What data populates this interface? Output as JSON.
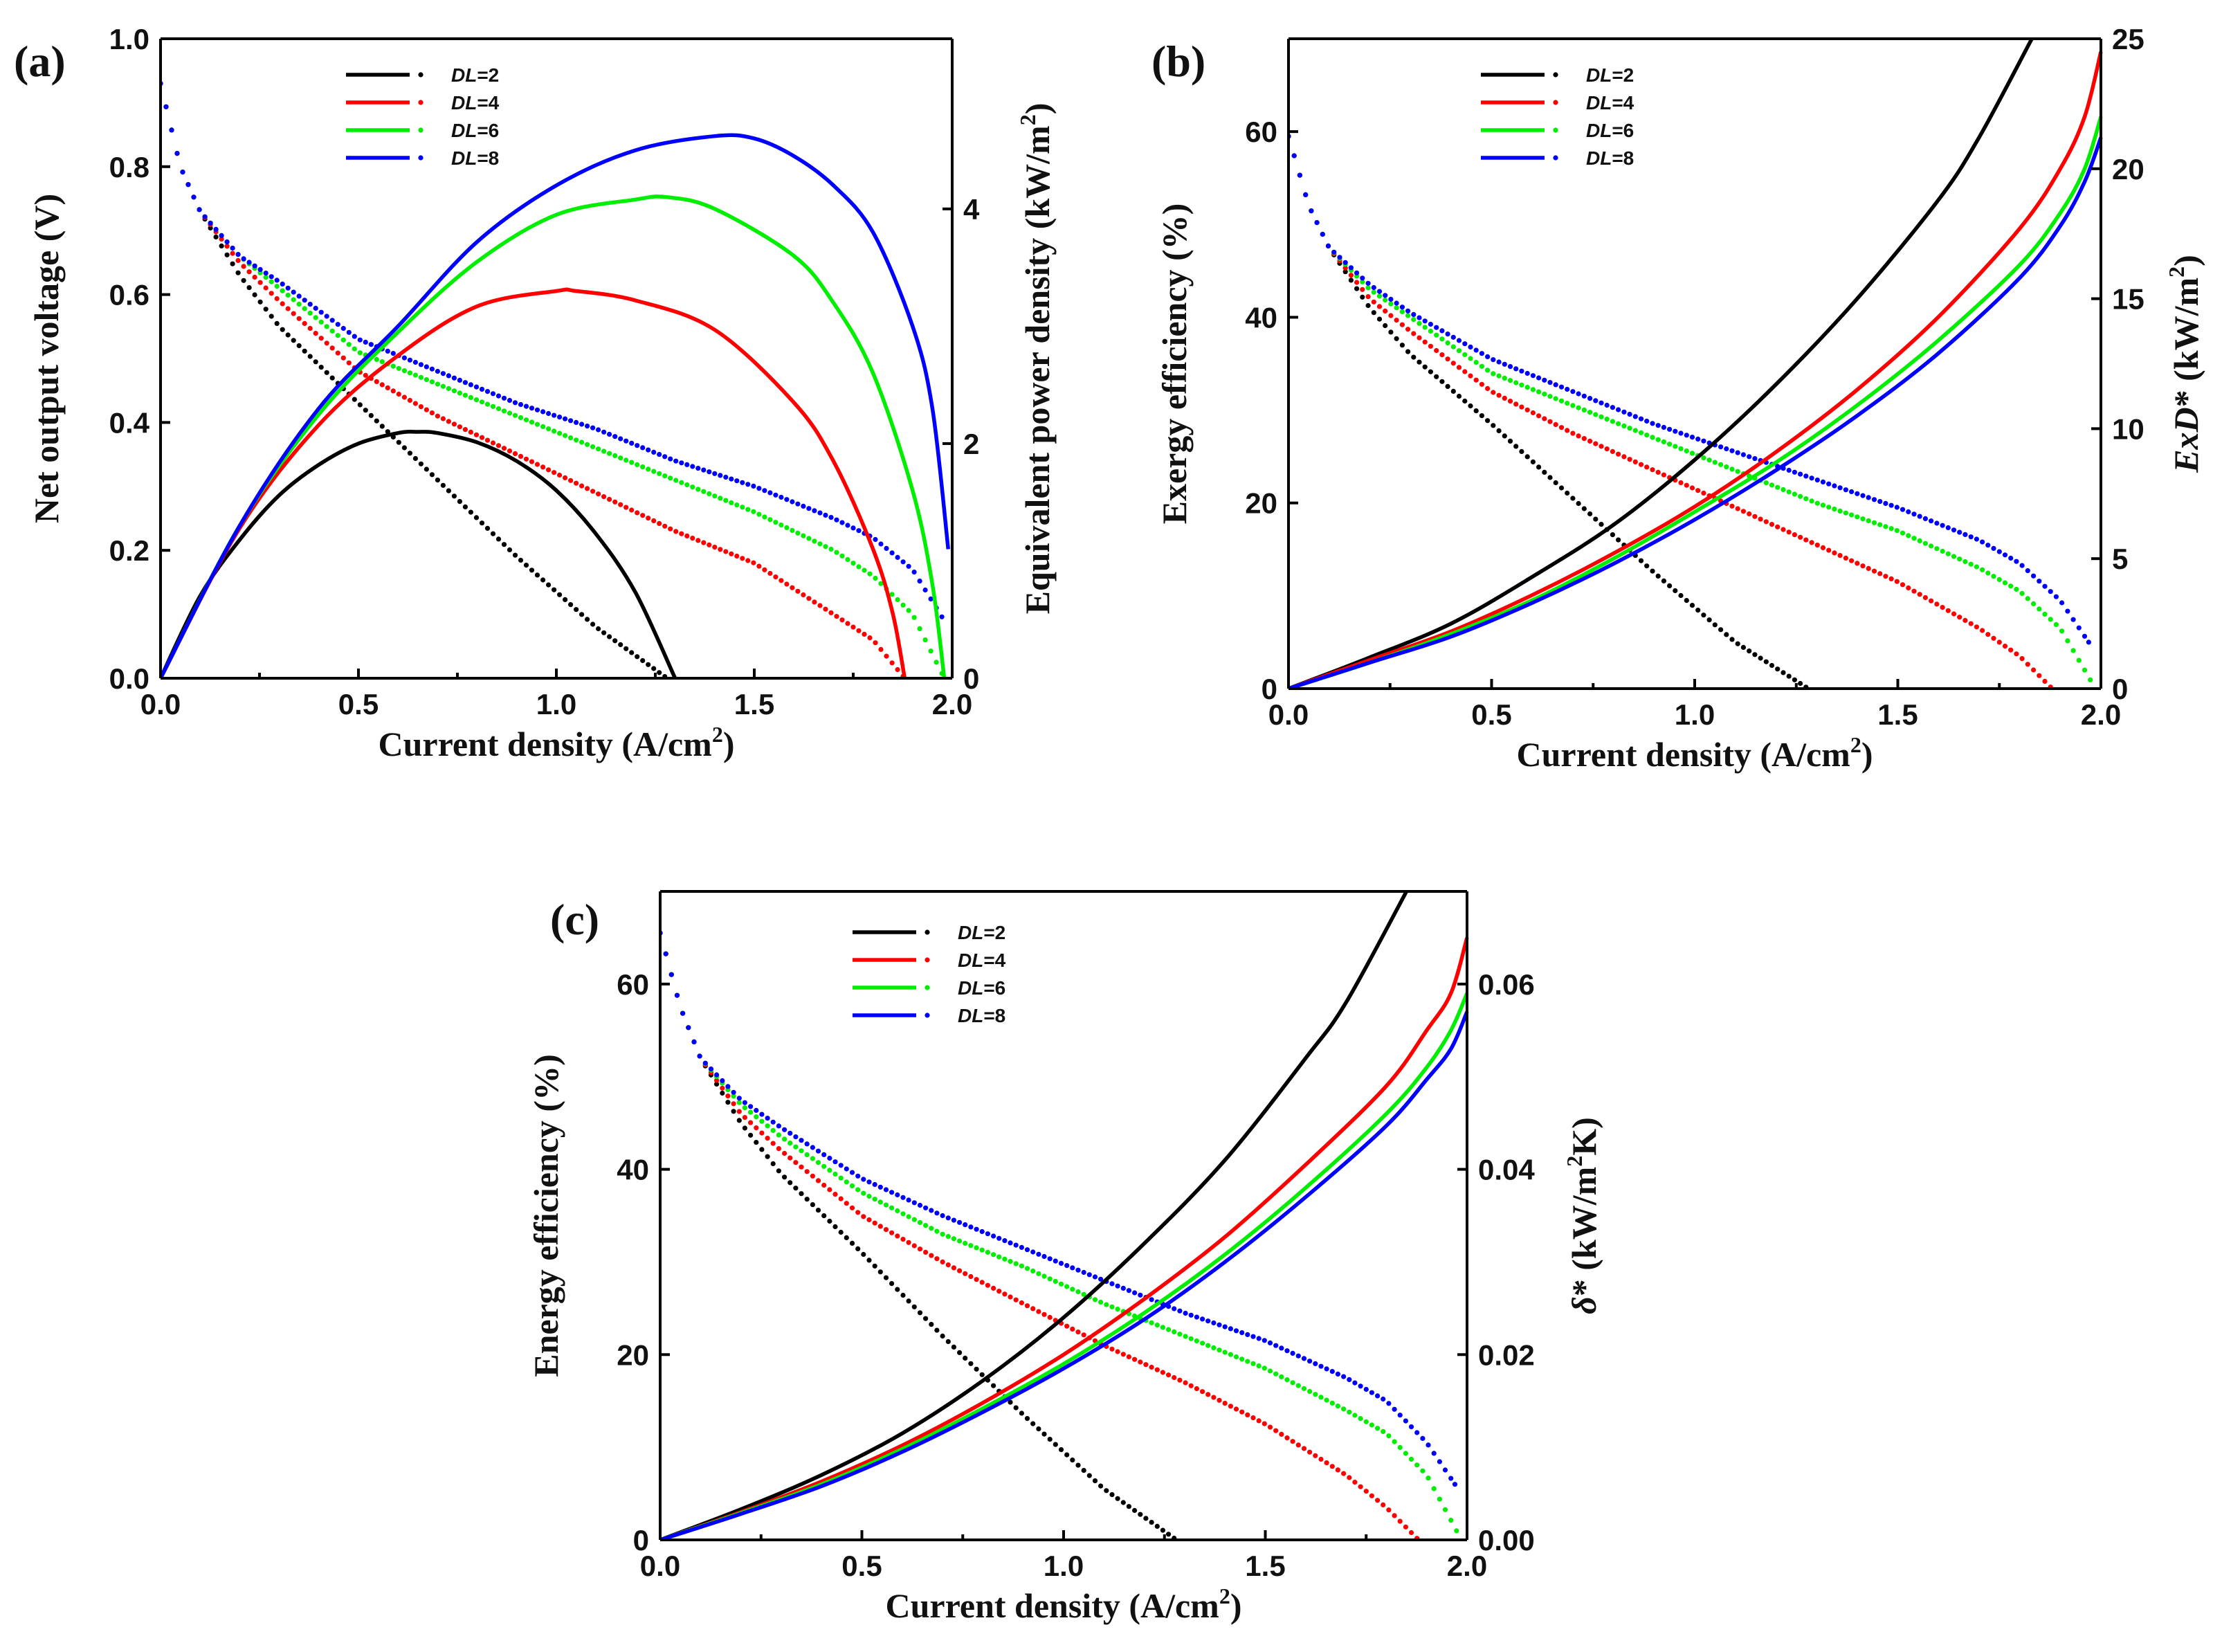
{
  "colors": {
    "DL=2": "#000000",
    "DL=4": "#ff0000",
    "DL=6": "#00ee00",
    "DL=8": "#0000ff"
  },
  "chart_data": [
    {
      "panel": "(a)",
      "type": "line",
      "xlabel": "Current density (A/cm",
      "xlabel_sup": "2",
      "xlabel_end": ")",
      "xlim": [
        0,
        2
      ],
      "xticks": [
        "0.0",
        "0.5",
        "1.0",
        "1.5",
        "2.0"
      ],
      "left_axis": {
        "label": "Net output voltage (V)",
        "ylim": [
          0,
          1.0
        ],
        "ticks": [
          "0.0",
          "0.2",
          "0.4",
          "0.6",
          "0.8",
          "1.0"
        ]
      },
      "right_axis": {
        "label": "Equivalent power density (kW/m",
        "label_sup": "2",
        "label_end": ")",
        "ylim": [
          0,
          5.45
        ],
        "ticks": [
          "0",
          "2",
          "4"
        ]
      },
      "legend": [
        {
          "prefix": "DL",
          "suffix": "=2"
        },
        {
          "prefix": "DL",
          "suffix": "=4"
        },
        {
          "prefix": "DL",
          "suffix": "=6"
        },
        {
          "prefix": "DL",
          "suffix": "=8"
        }
      ],
      "series": [
        {
          "name": "DL=2",
          "style": "dotted",
          "axis": "left",
          "x": [
            0,
            0.05,
            0.1,
            0.2,
            0.3,
            0.5,
            0.7,
            0.9,
            1.1,
            1.28
          ],
          "y": [
            0.93,
            0.8,
            0.73,
            0.63,
            0.55,
            0.43,
            0.31,
            0.19,
            0.08,
            0.0
          ]
        },
        {
          "name": "DL=4",
          "style": "dotted",
          "axis": "left",
          "x": [
            0,
            0.05,
            0.1,
            0.2,
            0.3,
            0.5,
            0.7,
            0.9,
            1.1,
            1.3,
            1.5,
            1.7,
            1.8,
            1.88
          ],
          "y": [
            0.93,
            0.8,
            0.73,
            0.65,
            0.59,
            0.48,
            0.41,
            0.35,
            0.29,
            0.23,
            0.18,
            0.1,
            0.06,
            0.0
          ]
        },
        {
          "name": "DL=6",
          "style": "dotted",
          "axis": "left",
          "x": [
            0,
            0.05,
            0.1,
            0.2,
            0.3,
            0.5,
            0.7,
            0.9,
            1.1,
            1.3,
            1.5,
            1.7,
            1.8,
            1.9,
            1.98
          ],
          "y": [
            0.93,
            0.8,
            0.73,
            0.66,
            0.61,
            0.51,
            0.46,
            0.41,
            0.36,
            0.31,
            0.26,
            0.2,
            0.16,
            0.1,
            0.0
          ]
        },
        {
          "name": "DL=8",
          "style": "dotted",
          "axis": "left",
          "x": [
            0,
            0.05,
            0.1,
            0.2,
            0.3,
            0.5,
            0.7,
            0.9,
            1.1,
            1.3,
            1.5,
            1.7,
            1.8,
            1.9,
            1.98
          ],
          "y": [
            0.93,
            0.8,
            0.73,
            0.66,
            0.62,
            0.53,
            0.48,
            0.43,
            0.39,
            0.34,
            0.3,
            0.25,
            0.22,
            0.17,
            0.09
          ]
        },
        {
          "name": "DL=2",
          "style": "solid",
          "axis": "right",
          "x": [
            0,
            0.1,
            0.2,
            0.3,
            0.4,
            0.5,
            0.6,
            0.65,
            0.7,
            0.8,
            0.9,
            1.0,
            1.1,
            1.2,
            1.3
          ],
          "y": [
            0,
            0.7,
            1.18,
            1.56,
            1.82,
            2.0,
            2.09,
            2.1,
            2.09,
            2.01,
            1.85,
            1.6,
            1.23,
            0.73,
            0.0
          ]
        },
        {
          "name": "DL=4",
          "style": "solid",
          "axis": "right",
          "x": [
            0,
            0.2,
            0.4,
            0.6,
            0.8,
            1.0,
            1.05,
            1.2,
            1.4,
            1.6,
            1.7,
            1.8,
            1.85,
            1.88
          ],
          "y": [
            0,
            1.28,
            2.16,
            2.75,
            3.17,
            3.3,
            3.3,
            3.22,
            2.97,
            2.35,
            1.85,
            1.1,
            0.55,
            0.0
          ]
        },
        {
          "name": "DL=6",
          "style": "solid",
          "axis": "right",
          "x": [
            0,
            0.2,
            0.4,
            0.6,
            0.8,
            1.0,
            1.2,
            1.28,
            1.4,
            1.6,
            1.7,
            1.8,
            1.9,
            1.95,
            1.98
          ],
          "y": [
            0,
            1.3,
            2.25,
            2.95,
            3.55,
            3.95,
            4.08,
            4.1,
            4.0,
            3.6,
            3.2,
            2.6,
            1.6,
            0.8,
            0.0
          ]
        },
        {
          "name": "DL=8",
          "style": "solid",
          "axis": "right",
          "x": [
            0,
            0.2,
            0.4,
            0.6,
            0.8,
            1.0,
            1.2,
            1.4,
            1.5,
            1.6,
            1.7,
            1.8,
            1.9,
            1.95,
            1.99
          ],
          "y": [
            0,
            1.3,
            2.3,
            3.0,
            3.72,
            4.2,
            4.5,
            4.62,
            4.6,
            4.45,
            4.2,
            3.8,
            3.0,
            2.3,
            1.1
          ]
        }
      ]
    },
    {
      "panel": "(b)",
      "type": "line",
      "xlabel": "Current density (A/cm",
      "xlabel_sup": "2",
      "xlabel_end": ")",
      "xlim": [
        0,
        2
      ],
      "xticks": [
        "0.0",
        "0.5",
        "1.0",
        "1.5",
        "2.0"
      ],
      "left_axis": {
        "label": "Exergy efficiency (%)",
        "ylim": [
          0,
          70
        ],
        "ticks": [
          "0",
          "20",
          "40",
          "60"
        ]
      },
      "right_axis": {
        "label_pre": "Ex",
        "label_ital": "D",
        "label_post": "* (kW/m",
        "label_sup": "2",
        "label_end": ")",
        "ylim": [
          0,
          25
        ],
        "ticks": [
          "0",
          "5",
          "10",
          "15",
          "20",
          "25"
        ]
      },
      "legend": [
        {
          "prefix": "DL",
          "suffix": "=2"
        },
        {
          "prefix": "DL",
          "suffix": "=4"
        },
        {
          "prefix": "DL",
          "suffix": "=6"
        },
        {
          "prefix": "DL",
          "suffix": "=8"
        }
      ],
      "series": [
        {
          "name": "DL=2",
          "style": "dotted",
          "axis": "left",
          "x": [
            0,
            0.05,
            0.1,
            0.2,
            0.3,
            0.5,
            0.7,
            0.9,
            1.1,
            1.28
          ],
          "y": [
            59.5,
            52,
            47.5,
            41,
            36,
            28.5,
            20.5,
            12.5,
            5,
            0
          ]
        },
        {
          "name": "DL=4",
          "style": "dotted",
          "axis": "left",
          "x": [
            0,
            0.05,
            0.1,
            0.2,
            0.3,
            0.5,
            0.7,
            0.9,
            1.1,
            1.3,
            1.5,
            1.7,
            1.8,
            1.88
          ],
          "y": [
            59.5,
            52,
            47.5,
            42,
            38.5,
            32,
            27.5,
            23.5,
            19.5,
            15.5,
            11.5,
            6.5,
            3.5,
            0
          ]
        },
        {
          "name": "DL=6",
          "style": "dotted",
          "axis": "left",
          "x": [
            0,
            0.05,
            0.1,
            0.2,
            0.3,
            0.5,
            0.7,
            0.9,
            1.1,
            1.3,
            1.5,
            1.7,
            1.8,
            1.9,
            1.98
          ],
          "y": [
            59.5,
            52,
            47.5,
            43,
            40,
            34,
            30.5,
            27,
            23.5,
            20,
            17,
            13,
            10.5,
            6.5,
            0.5
          ]
        },
        {
          "name": "DL=8",
          "style": "dotted",
          "axis": "left",
          "x": [
            0,
            0.05,
            0.1,
            0.2,
            0.3,
            0.5,
            0.7,
            0.9,
            1.1,
            1.3,
            1.5,
            1.7,
            1.8,
            1.9,
            1.97
          ],
          "y": [
            59.5,
            52,
            47.5,
            43.5,
            40.5,
            35.5,
            32,
            28.5,
            25.5,
            22.5,
            19.5,
            16,
            13.5,
            9.5,
            5
          ]
        },
        {
          "name": "DL=2",
          "style": "solid",
          "axis": "right",
          "x": [
            0,
            0.2,
            0.4,
            0.6,
            0.8,
            1.0,
            1.2,
            1.4,
            1.6,
            1.7,
            1.83
          ],
          "y": [
            0,
            1.2,
            2.5,
            4.3,
            6.3,
            8.8,
            11.7,
            15,
            18.8,
            21.2,
            25
          ]
        },
        {
          "name": "DL=4",
          "style": "solid",
          "axis": "right",
          "x": [
            0,
            0.2,
            0.4,
            0.6,
            0.8,
            1.0,
            1.2,
            1.4,
            1.6,
            1.8,
            1.9,
            1.96,
            2.0
          ],
          "y": [
            0,
            1.1,
            2.2,
            3.6,
            5.2,
            7,
            9.1,
            11.5,
            14.3,
            17.7,
            20,
            22,
            24.5
          ]
        },
        {
          "name": "DL=6",
          "style": "solid",
          "axis": "right",
          "x": [
            0,
            0.2,
            0.4,
            0.6,
            0.8,
            1.0,
            1.2,
            1.4,
            1.6,
            1.8,
            1.9,
            1.96,
            2.0
          ],
          "y": [
            0,
            1.0,
            2.1,
            3.4,
            5.0,
            6.8,
            8.7,
            10.9,
            13.4,
            16.3,
            18.3,
            20,
            22
          ]
        },
        {
          "name": "DL=8",
          "style": "solid",
          "axis": "right",
          "x": [
            0,
            0.2,
            0.4,
            0.6,
            0.8,
            1.0,
            1.2,
            1.4,
            1.6,
            1.8,
            1.9,
            1.96,
            2.0
          ],
          "y": [
            0,
            1.0,
            2.0,
            3.3,
            4.8,
            6.5,
            8.4,
            10.5,
            12.9,
            15.8,
            17.8,
            19.5,
            21.2
          ]
        }
      ]
    },
    {
      "panel": "(c)",
      "type": "line",
      "xlabel": "Current density (A/cm",
      "xlabel_sup": "2",
      "xlabel_end": ")",
      "xlim": [
        0,
        2
      ],
      "xticks": [
        "0.0",
        "0.5",
        "1.0",
        "1.5",
        "2.0"
      ],
      "left_axis": {
        "label": "Energy efficiency (%)",
        "ylim": [
          0,
          70
        ],
        "ticks": [
          "0",
          "20",
          "40",
          "60"
        ]
      },
      "right_axis": {
        "label_ital": "δ",
        "label_post": "* (kW/m",
        "label_sup": "2",
        "label_end": "K)",
        "ylim": [
          0,
          0.07
        ],
        "ticks": [
          "0.00",
          "0.02",
          "0.04",
          "0.06"
        ]
      },
      "legend": [
        {
          "prefix": "DL",
          "suffix": "=2"
        },
        {
          "prefix": "DL",
          "suffix": "=4"
        },
        {
          "prefix": "DL",
          "suffix": "=6"
        },
        {
          "prefix": "DL",
          "suffix": "=8"
        }
      ],
      "series": [
        {
          "name": "DL=2",
          "style": "dotted",
          "axis": "left",
          "x": [
            0,
            0.05,
            0.1,
            0.2,
            0.3,
            0.5,
            0.7,
            0.9,
            1.1,
            1.28
          ],
          "y": [
            65.5,
            57.5,
            52,
            45,
            39.5,
            31,
            22,
            13.5,
            5.5,
            0
          ]
        },
        {
          "name": "DL=4",
          "style": "dotted",
          "axis": "left",
          "x": [
            0,
            0.05,
            0.1,
            0.2,
            0.3,
            0.5,
            0.7,
            0.9,
            1.1,
            1.3,
            1.5,
            1.7,
            1.8,
            1.88
          ],
          "y": [
            65.5,
            57.5,
            52,
            46,
            42,
            35,
            30,
            25.5,
            21,
            17,
            12.5,
            7,
            3.5,
            0
          ]
        },
        {
          "name": "DL=6",
          "style": "dotted",
          "axis": "left",
          "x": [
            0,
            0.05,
            0.1,
            0.2,
            0.3,
            0.5,
            0.7,
            0.9,
            1.1,
            1.3,
            1.5,
            1.7,
            1.8,
            1.9,
            1.98
          ],
          "y": [
            65.5,
            57.5,
            52,
            47,
            43.5,
            37.5,
            33,
            29.5,
            25.5,
            22,
            18.5,
            14,
            11.5,
            7,
            0.5
          ]
        },
        {
          "name": "DL=8",
          "style": "dotted",
          "axis": "left",
          "x": [
            0,
            0.05,
            0.1,
            0.2,
            0.3,
            0.5,
            0.7,
            0.9,
            1.1,
            1.3,
            1.5,
            1.7,
            1.8,
            1.9,
            1.97
          ],
          "y": [
            65.5,
            57.5,
            52,
            47.5,
            44.5,
            39,
            35,
            31.5,
            28,
            24.5,
            21.5,
            17.5,
            15,
            10.5,
            6
          ]
        },
        {
          "name": "DL=2",
          "style": "solid",
          "axis": "right",
          "x": [
            0,
            0.2,
            0.4,
            0.6,
            0.8,
            1.0,
            1.2,
            1.4,
            1.6,
            1.7,
            1.85
          ],
          "y": [
            0,
            0.0033,
            0.007,
            0.0115,
            0.0172,
            0.024,
            0.032,
            0.041,
            0.052,
            0.058,
            0.07
          ]
        },
        {
          "name": "DL=4",
          "style": "solid",
          "axis": "right",
          "x": [
            0,
            0.2,
            0.4,
            0.6,
            0.8,
            1.0,
            1.2,
            1.4,
            1.6,
            1.8,
            1.9,
            1.96,
            2.0
          ],
          "y": [
            0,
            0.003,
            0.0063,
            0.0102,
            0.0148,
            0.02,
            0.026,
            0.0327,
            0.0405,
            0.049,
            0.055,
            0.059,
            0.065
          ]
        },
        {
          "name": "DL=6",
          "style": "solid",
          "axis": "right",
          "x": [
            0,
            0.2,
            0.4,
            0.6,
            0.8,
            1.0,
            1.2,
            1.4,
            1.6,
            1.8,
            1.9,
            1.96,
            2.0
          ],
          "y": [
            0,
            0.0029,
            0.006,
            0.0098,
            0.0142,
            0.019,
            0.0245,
            0.0308,
            0.038,
            0.046,
            0.051,
            0.055,
            0.059
          ]
        },
        {
          "name": "DL=8",
          "style": "solid",
          "axis": "right",
          "x": [
            0,
            0.2,
            0.4,
            0.6,
            0.8,
            1.0,
            1.2,
            1.4,
            1.6,
            1.8,
            1.9,
            1.96,
            2.0
          ],
          "y": [
            0,
            0.0028,
            0.0058,
            0.0095,
            0.0138,
            0.0185,
            0.0238,
            0.03,
            0.037,
            0.0447,
            0.0497,
            0.053,
            0.057
          ]
        }
      ]
    }
  ]
}
